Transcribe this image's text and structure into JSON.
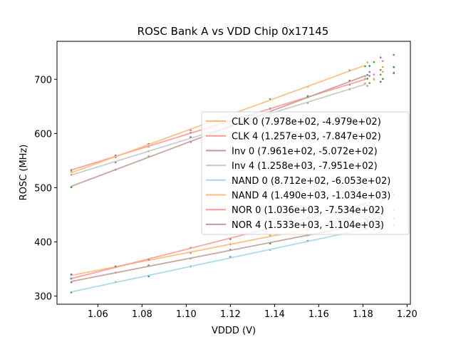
{
  "chart_data": {
    "type": "line",
    "title": "ROSC Bank A vs VDD Chip 0x17145",
    "xlabel": "VDDD (V)",
    "ylabel": "ROSC (MHz)",
    "xlim": [
      1.0415,
      1.2015
    ],
    "ylim": [
      285,
      770
    ],
    "xticks": [
      1.06,
      1.08,
      1.1,
      1.12,
      1.14,
      1.16,
      1.18,
      1.2
    ],
    "xtick_labels": [
      "1.06",
      "1.08",
      "1.10",
      "1.12",
      "1.14",
      "1.16",
      "1.18",
      "1.20"
    ],
    "yticks": [
      300,
      400,
      500,
      600,
      700
    ],
    "ytick_labels": [
      "300",
      "400",
      "500",
      "600",
      "700"
    ],
    "grid": false,
    "legend_position": "center-right",
    "fit_x_range": [
      1.048,
      1.181
    ],
    "series": [
      {
        "name": "CLK 0 (7.978e+02, -4.979e+02)",
        "slope": 797.8,
        "intercept": -497.9,
        "color": "#ffbb78"
      },
      {
        "name": "CLK 4 (1.257e+03, -7.847e+02)",
        "slope": 1257,
        "intercept": -784.7,
        "color": "#ff9896"
      },
      {
        "name": "Inv 0 (7.961e+02, -5.072e+02)",
        "slope": 796.1,
        "intercept": -507.2,
        "color": "#c49c94"
      },
      {
        "name": "Inv 4 (1.258e+03, -7.951e+02)",
        "slope": 1258,
        "intercept": -795.1,
        "color": "#c7c7c7"
      },
      {
        "name": "NAND 0 (8.712e+02, -6.053e+02)",
        "slope": 871.2,
        "intercept": -605.3,
        "color": "#9edae5"
      },
      {
        "name": "NAND 4 (1.490e+03, -1.034e+03)",
        "slope": 1490,
        "intercept": -1034,
        "color": "#ffbb78"
      },
      {
        "name": "NOR 0 (1.036e+03, -7.534e+02)",
        "slope": 1036,
        "intercept": -753.4,
        "color": "#ff9896"
      },
      {
        "name": "NOR 4 (1.533e+03, -1.104e+03)",
        "slope": 1533,
        "intercept": -1104,
        "color": "#c49c94"
      }
    ],
    "scatter_points": {
      "x_measured": [
        1.048,
        1.068,
        1.083,
        1.102,
        1.12,
        1.138,
        1.155,
        1.174,
        1.181
      ],
      "extra_x": [
        1.182,
        1.183,
        1.185,
        1.188,
        1.189,
        1.194
      ],
      "colors": [
        "#1f77b4",
        "#2ca02c",
        "#9467bd",
        "#e377c2",
        "#7f7f7f",
        "#bcbd22"
      ]
    }
  }
}
